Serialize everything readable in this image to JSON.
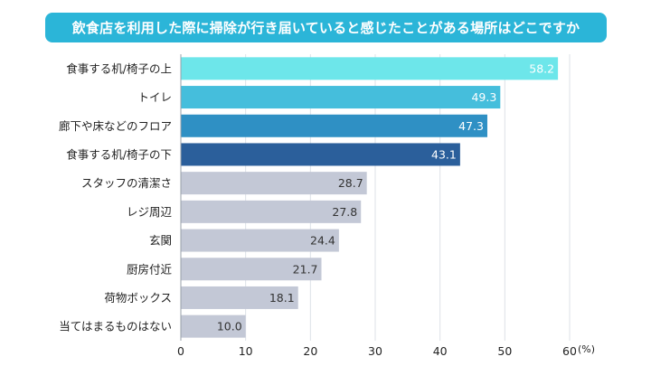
{
  "chart_data": {
    "type": "bar",
    "orientation": "horizontal",
    "title": "飲食店を利用した際に掃除が行き届いていると感じたことがある場所はどこですか",
    "categories": [
      "食事する机/椅子の上",
      "トイレ",
      "廊下や床などのフロア",
      "食事する机/椅子の下",
      "スタッフの清潔さ",
      "レジ周辺",
      "玄関",
      "厨房付近",
      "荷物ボックス",
      "当てはまるものはない"
    ],
    "values": [
      58.2,
      49.3,
      47.3,
      43.1,
      28.7,
      27.8,
      24.4,
      21.7,
      18.1,
      10.0
    ],
    "value_labels": [
      "58.2",
      "49.3",
      "47.3",
      "43.1",
      "28.7",
      "27.8",
      "24.4",
      "21.7",
      "18.1",
      "10.0"
    ],
    "bar_colors": [
      "#6de6ea",
      "#45bedc",
      "#2f90c4",
      "#2b5f9b",
      "#c3c8d6",
      "#c3c8d6",
      "#c3c8d6",
      "#c3c8d6",
      "#c3c8d6",
      "#c3c8d6"
    ],
    "label_colors": [
      "#ffffff",
      "#ffffff",
      "#ffffff",
      "#ffffff",
      "#333333",
      "#333333",
      "#333333",
      "#333333",
      "#333333",
      "#333333"
    ],
    "xlim": [
      0,
      60
    ],
    "xticks": [
      0,
      10,
      20,
      30,
      40,
      50,
      60
    ],
    "xtick_labels": [
      "0",
      "10",
      "20",
      "30",
      "40",
      "50",
      "60"
    ],
    "unit_label": "(%)",
    "grid": true
  }
}
